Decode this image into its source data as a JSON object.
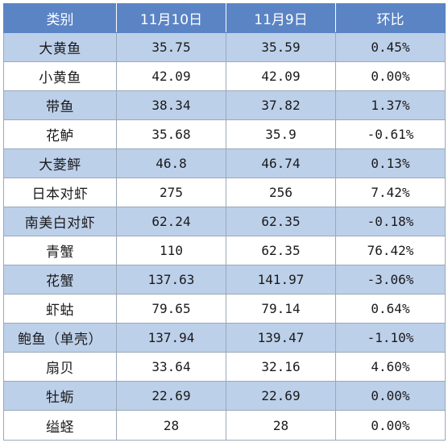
{
  "table": {
    "headers": [
      "类别",
      "11月10日",
      "11月9日",
      "环比"
    ],
    "rows": [
      {
        "name": "大黄鱼",
        "d10": "35.75",
        "d9": "35.59",
        "change": "0.45%"
      },
      {
        "name": "小黄鱼",
        "d10": "42.09",
        "d9": "42.09",
        "change": "0.00%"
      },
      {
        "name": "带鱼",
        "d10": "38.34",
        "d9": "37.82",
        "change": "1.37%"
      },
      {
        "name": "花鲈",
        "d10": "35.68",
        "d9": "35.9",
        "change": "-0.61%"
      },
      {
        "name": "大菱鲆",
        "d10": "46.8",
        "d9": "46.74",
        "change": "0.13%"
      },
      {
        "name": "日本对虾",
        "d10": "275",
        "d9": "256",
        "change": "7.42%"
      },
      {
        "name": "南美白对虾",
        "d10": "62.24",
        "d9": "62.35",
        "change": "-0.18%"
      },
      {
        "name": "青蟹",
        "d10": "110",
        "d9": "62.35",
        "change": "76.42%"
      },
      {
        "name": "花蟹",
        "d10": "137.63",
        "d9": "141.97",
        "change": "-3.06%"
      },
      {
        "name": "虾蛄",
        "d10": "79.65",
        "d9": "79.14",
        "change": "0.64%"
      },
      {
        "name": "鲍鱼（单壳）",
        "d10": "137.94",
        "d9": "139.47",
        "change": "-1.10%"
      },
      {
        "name": "扇贝",
        "d10": "33.64",
        "d9": "32.16",
        "change": "4.60%"
      },
      {
        "name": "牡蛎",
        "d10": "22.69",
        "d9": "22.69",
        "change": "0.00%"
      },
      {
        "name": "缢蛏",
        "d10": "28",
        "d9": "28",
        "change": "0.00%"
      }
    ]
  },
  "colors": {
    "header_bg": "#5b84c4",
    "band_bg": "#bdd0ea",
    "plain_bg": "#ffffff"
  }
}
